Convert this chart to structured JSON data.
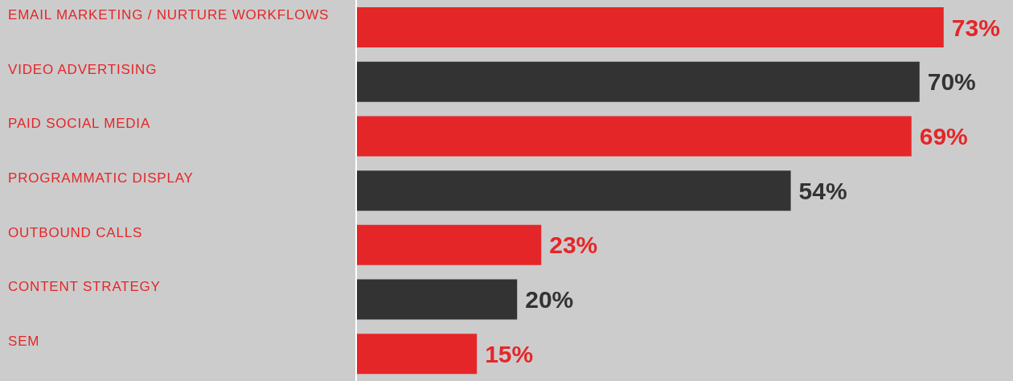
{
  "chart_data": {
    "type": "bar",
    "orientation": "horizontal",
    "categories": [
      "EMAIL MARKETING / NURTURE WORKFLOWS",
      "VIDEO ADVERTISING",
      "PAID SOCIAL MEDIA",
      "PROGRAMMATIC DISPLAY",
      "OUTBOUND CALLS",
      "CONTENT STRATEGY",
      "SEM"
    ],
    "values": [
      73,
      70,
      69,
      54,
      23,
      20,
      15
    ],
    "colors": [
      "#e52628",
      "#333333",
      "#e52628",
      "#333333",
      "#e52628",
      "#333333",
      "#e52628"
    ],
    "value_labels": [
      "73%",
      "70%",
      "69%",
      "54%",
      "23%",
      "20%",
      "15%"
    ],
    "grid": false,
    "legend": false
  }
}
